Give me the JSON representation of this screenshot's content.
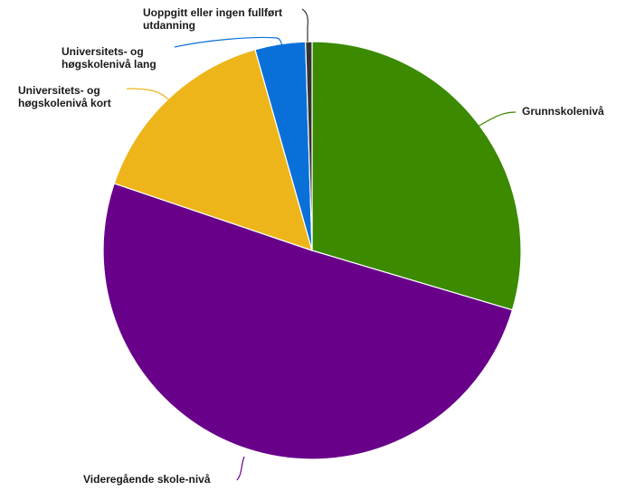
{
  "chart_data": {
    "type": "pie",
    "title": "",
    "start_angle_deg": 0,
    "direction": "clockwise",
    "slices": [
      {
        "label": "Grunnskolenivå",
        "label_lines": [
          "Grunnskolenivå"
        ],
        "value": 29.6,
        "color": "#3b8a00"
      },
      {
        "label": "Videregående skole-nivå",
        "label_lines": [
          "Videregående skole-nivå"
        ],
        "value": 50.6,
        "color": "#68008a"
      },
      {
        "label": "Universitets- og høgskolenivå kort",
        "label_lines": [
          "Universitets- og",
          "høgskolenivå kort"
        ],
        "value": 15.4,
        "color": "#eeb51b"
      },
      {
        "label": "Universitets- og høgskolenivå lang",
        "label_lines": [
          "Universitets- og",
          "høgskolenivå lang"
        ],
        "value": 3.9,
        "color": "#0a70d9"
      },
      {
        "label": "Uoppgitt eller ingen fullført utdanning",
        "label_lines": [
          "Uoppgitt eller ingen fullført",
          "utdanning"
        ],
        "value": 0.5,
        "color": "#333333"
      }
    ]
  }
}
